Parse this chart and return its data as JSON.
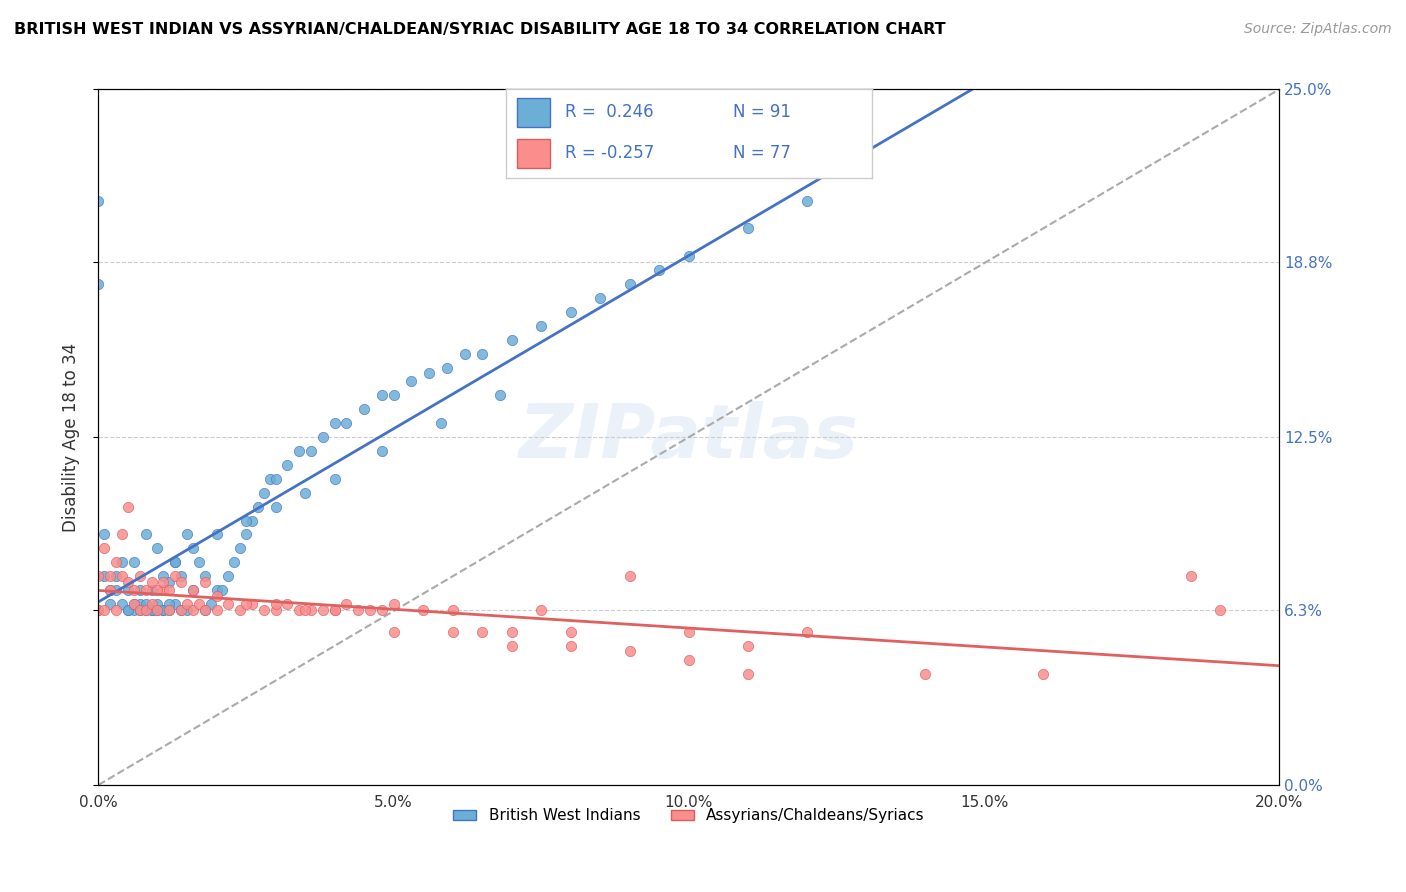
{
  "title": "BRITISH WEST INDIAN VS ASSYRIAN/CHALDEAN/SYRIAC DISABILITY AGE 18 TO 34 CORRELATION CHART",
  "source": "Source: ZipAtlas.com",
  "ylabel": "Disability Age 18 to 34",
  "xmin": 0.0,
  "xmax": 0.2,
  "ymin": 0.0,
  "ymax": 0.25,
  "yticks": [
    0.0,
    0.063,
    0.125,
    0.188,
    0.25
  ],
  "ytick_labels": [
    "0.0%",
    "6.3%",
    "12.5%",
    "18.8%",
    "25.0%"
  ],
  "xticks": [
    0.0,
    0.05,
    0.1,
    0.15,
    0.2
  ],
  "xtick_labels": [
    "0.0%",
    "5.0%",
    "10.0%",
    "15.0%",
    "20.0%"
  ],
  "blue_color": "#6baed6",
  "pink_color": "#fc8d8d",
  "trend_blue": "#4472c4",
  "trend_pink": "#e06060",
  "trend_gray": "#aaaaaa",
  "watermark": "ZIPatlas",
  "label1": "British West Indians",
  "label2": "Assyrians/Chaldeans/Syriacs",
  "blue_points_x": [
    0.0,
    0.002,
    0.003,
    0.004,
    0.005,
    0.005,
    0.006,
    0.006,
    0.007,
    0.007,
    0.008,
    0.008,
    0.009,
    0.009,
    0.01,
    0.01,
    0.011,
    0.011,
    0.012,
    0.012,
    0.013,
    0.013,
    0.014,
    0.014,
    0.015,
    0.015,
    0.016,
    0.017,
    0.018,
    0.018,
    0.019,
    0.02,
    0.021,
    0.022,
    0.023,
    0.024,
    0.025,
    0.026,
    0.027,
    0.028,
    0.029,
    0.03,
    0.032,
    0.034,
    0.036,
    0.038,
    0.04,
    0.042,
    0.045,
    0.048,
    0.05,
    0.053,
    0.056,
    0.059,
    0.062,
    0.065,
    0.07,
    0.075,
    0.08,
    0.085,
    0.09,
    0.095,
    0.1,
    0.11,
    0.12,
    0.13,
    0.0,
    0.0,
    0.001,
    0.001,
    0.002,
    0.003,
    0.004,
    0.005,
    0.006,
    0.007,
    0.008,
    0.009,
    0.01,
    0.011,
    0.012,
    0.013,
    0.016,
    0.02,
    0.025,
    0.03,
    0.035,
    0.04,
    0.048,
    0.058,
    0.068
  ],
  "blue_points_y": [
    0.063,
    0.07,
    0.07,
    0.08,
    0.063,
    0.07,
    0.063,
    0.08,
    0.065,
    0.07,
    0.063,
    0.09,
    0.063,
    0.07,
    0.063,
    0.085,
    0.063,
    0.075,
    0.063,
    0.073,
    0.065,
    0.08,
    0.063,
    0.075,
    0.063,
    0.09,
    0.07,
    0.08,
    0.063,
    0.075,
    0.065,
    0.07,
    0.07,
    0.075,
    0.08,
    0.085,
    0.09,
    0.095,
    0.1,
    0.105,
    0.11,
    0.11,
    0.115,
    0.12,
    0.12,
    0.125,
    0.13,
    0.13,
    0.135,
    0.14,
    0.14,
    0.145,
    0.148,
    0.15,
    0.155,
    0.155,
    0.16,
    0.165,
    0.17,
    0.175,
    0.18,
    0.185,
    0.19,
    0.2,
    0.21,
    0.22,
    0.18,
    0.21,
    0.075,
    0.09,
    0.065,
    0.075,
    0.065,
    0.063,
    0.065,
    0.063,
    0.065,
    0.063,
    0.065,
    0.063,
    0.065,
    0.08,
    0.085,
    0.09,
    0.095,
    0.1,
    0.105,
    0.11,
    0.12,
    0.13,
    0.14
  ],
  "pink_points_x": [
    0.0,
    0.001,
    0.002,
    0.003,
    0.004,
    0.005,
    0.006,
    0.007,
    0.008,
    0.009,
    0.01,
    0.011,
    0.012,
    0.013,
    0.014,
    0.015,
    0.016,
    0.017,
    0.018,
    0.02,
    0.022,
    0.024,
    0.026,
    0.028,
    0.03,
    0.032,
    0.034,
    0.036,
    0.038,
    0.04,
    0.042,
    0.044,
    0.046,
    0.048,
    0.05,
    0.055,
    0.06,
    0.065,
    0.07,
    0.075,
    0.08,
    0.09,
    0.1,
    0.11,
    0.12,
    0.0,
    0.001,
    0.002,
    0.003,
    0.004,
    0.005,
    0.006,
    0.007,
    0.008,
    0.009,
    0.01,
    0.011,
    0.012,
    0.014,
    0.016,
    0.018,
    0.02,
    0.025,
    0.03,
    0.035,
    0.04,
    0.05,
    0.06,
    0.07,
    0.08,
    0.09,
    0.1,
    0.11,
    0.14,
    0.16,
    0.185,
    0.19
  ],
  "pink_points_y": [
    0.063,
    0.063,
    0.07,
    0.063,
    0.09,
    0.1,
    0.065,
    0.063,
    0.063,
    0.065,
    0.063,
    0.07,
    0.063,
    0.075,
    0.063,
    0.065,
    0.063,
    0.065,
    0.063,
    0.063,
    0.065,
    0.063,
    0.065,
    0.063,
    0.063,
    0.065,
    0.063,
    0.063,
    0.063,
    0.063,
    0.065,
    0.063,
    0.063,
    0.063,
    0.065,
    0.063,
    0.063,
    0.055,
    0.05,
    0.063,
    0.055,
    0.075,
    0.055,
    0.05,
    0.055,
    0.075,
    0.085,
    0.075,
    0.08,
    0.075,
    0.073,
    0.07,
    0.075,
    0.07,
    0.073,
    0.07,
    0.073,
    0.07,
    0.073,
    0.07,
    0.073,
    0.068,
    0.065,
    0.065,
    0.063,
    0.063,
    0.055,
    0.055,
    0.055,
    0.05,
    0.048,
    0.045,
    0.04,
    0.04,
    0.04,
    0.075,
    0.063
  ]
}
